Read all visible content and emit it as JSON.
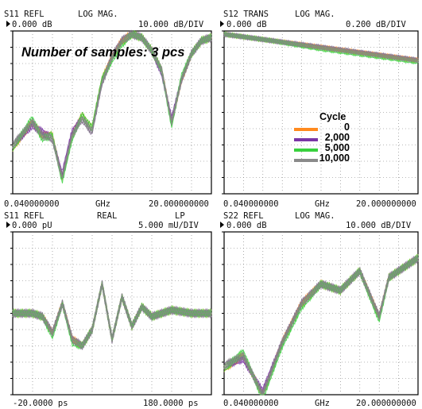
{
  "note": "Number of samples: 3 pcs",
  "legend": {
    "title": "Cycle",
    "entries": [
      {
        "label": "0",
        "color": "#ff8a1e"
      },
      {
        "label": "2,000",
        "color": "#7a35a6"
      },
      {
        "label": "5,000",
        "color": "#39d13e"
      },
      {
        "label": "10,000",
        "color": "#8a8a8a"
      }
    ]
  },
  "panels": [
    {
      "title_left": "S11 REFL",
      "title_mid": "LOG MAG.",
      "title_lp": "",
      "ref": "0.000 dB",
      "scale": "10.000 dB/DIV",
      "x_start": "0.040000000",
      "x_unit": "GHz",
      "x_stop": "20.000000000",
      "trace_shape": "s11"
    },
    {
      "title_left": "S12 TRANS",
      "title_mid": "LOG MAG.",
      "title_lp": "",
      "ref": "0.000 dB",
      "scale": "0.200 dB/DIV",
      "x_start": "0.040000000",
      "x_unit": "GHz",
      "x_stop": "20.000000000",
      "trace_shape": "s12"
    },
    {
      "title_left": "S11 REFL",
      "title_mid": "REAL",
      "title_lp": "LP",
      "ref": "0.000 pU",
      "scale": "5.000 mU/DIV",
      "x_start": "-20.0000 ps",
      "x_unit": "",
      "x_stop": "180.0000 ps",
      "trace_shape": "tdr"
    },
    {
      "title_left": "S22 REFL",
      "title_mid": "LOG MAG.",
      "title_lp": "",
      "ref": "0.000 dB",
      "scale": "10.000 dB/DIV",
      "x_start": "0.040000000",
      "x_unit": "GHz",
      "x_stop": "20.000000000",
      "trace_shape": "s22"
    }
  ],
  "chart_data": [
    {
      "type": "line",
      "title": "S11 REFL LOG MAG.",
      "xlabel": "GHz",
      "xlim": [
        0.04,
        20.0
      ],
      "scale_per_div": "10.000 dB/DIV",
      "series": [
        {
          "name": "0",
          "x": [
            0.04,
            2,
            3,
            4,
            5,
            6,
            7,
            8,
            9,
            10,
            11,
            12,
            13,
            14,
            15,
            16,
            17,
            18,
            19,
            20
          ],
          "y": [
            -36,
            -28,
            -32,
            -32,
            -45,
            -32,
            -26,
            -30,
            -15,
            -8,
            -3,
            -1,
            -2,
            -6,
            -12,
            -28,
            -15,
            -7,
            -3,
            -2
          ]
        },
        {
          "name": "2,000",
          "x": [
            0.04,
            2,
            3,
            4,
            5,
            6,
            7,
            8,
            9,
            10,
            11,
            12,
            13,
            14,
            15,
            16,
            17,
            18,
            19,
            20
          ],
          "y": [
            -35,
            -29,
            -31,
            -33,
            -44,
            -31,
            -27,
            -31,
            -16,
            -8,
            -3,
            -1,
            -2,
            -6,
            -13,
            -27,
            -15,
            -7,
            -3,
            -2
          ]
        },
        {
          "name": "5,000",
          "x": [
            0.04,
            2,
            3,
            4,
            5,
            6,
            7,
            8,
            9,
            10,
            11,
            12,
            13,
            14,
            15,
            16,
            17,
            18,
            19,
            20
          ],
          "y": [
            -36,
            -27,
            -33,
            -32,
            -46,
            -33,
            -26,
            -30,
            -15,
            -9,
            -4,
            -1,
            -2,
            -6,
            -12,
            -29,
            -14,
            -7,
            -3,
            -2
          ]
        },
        {
          "name": "10,000",
          "x": [
            0.04,
            2,
            3,
            4,
            5,
            6,
            7,
            8,
            9,
            10,
            11,
            12,
            13,
            14,
            15,
            16,
            17,
            18,
            19,
            20
          ],
          "y": [
            -35,
            -28,
            -32,
            -33,
            -45,
            -32,
            -27,
            -31,
            -16,
            -8,
            -3,
            -1,
            -2,
            -6,
            -12,
            -28,
            -15,
            -7,
            -3,
            -2
          ]
        }
      ]
    },
    {
      "type": "line",
      "title": "S12 TRANS LOG MAG.",
      "xlabel": "GHz",
      "xlim": [
        0.04,
        20.0
      ],
      "scale_per_div": "0.200 dB/DIV",
      "series": [
        {
          "name": "0",
          "x": [
            0.04,
            5,
            10,
            15,
            20
          ],
          "y": [
            -0.02,
            -0.06,
            -0.1,
            -0.14,
            -0.18
          ]
        },
        {
          "name": "2,000",
          "x": [
            0.04,
            5,
            10,
            15,
            20
          ],
          "y": [
            -0.02,
            -0.06,
            -0.1,
            -0.14,
            -0.18
          ]
        },
        {
          "name": "5,000",
          "x": [
            0.04,
            5,
            10,
            15,
            20
          ],
          "y": [
            -0.02,
            -0.06,
            -0.11,
            -0.15,
            -0.19
          ]
        },
        {
          "name": "10,000",
          "x": [
            0.04,
            5,
            10,
            15,
            20
          ],
          "y": [
            -0.02,
            -0.06,
            -0.1,
            -0.14,
            -0.18
          ]
        }
      ]
    },
    {
      "type": "line",
      "title": "S11 REFL REAL LP",
      "xlabel": "ps",
      "xlim": [
        -20.0,
        180.0
      ],
      "scale_per_div": "5.000 mU/DIV",
      "series": [
        {
          "name": "0",
          "x": [
            -20,
            0,
            10,
            20,
            30,
            40,
            50,
            60,
            70,
            80,
            90,
            100,
            110,
            120,
            140,
            160,
            180
          ],
          "y": [
            0,
            0,
            -1,
            -6,
            3,
            -8,
            -10,
            -5,
            9,
            -8,
            5,
            -4,
            2,
            -1,
            1,
            0,
            0
          ]
        },
        {
          "name": "2,000",
          "x": [
            -20,
            0,
            10,
            20,
            30,
            40,
            50,
            60,
            70,
            80,
            90,
            100,
            110,
            120,
            140,
            160,
            180
          ],
          "y": [
            0,
            0,
            -1,
            -6,
            3,
            -8,
            -10,
            -5,
            9,
            -8,
            5,
            -4,
            2,
            -1,
            1,
            0,
            0
          ]
        },
        {
          "name": "5,000",
          "x": [
            -20,
            0,
            10,
            20,
            30,
            40,
            50,
            60,
            70,
            80,
            90,
            100,
            110,
            120,
            140,
            160,
            180
          ],
          "y": [
            0,
            0,
            -1,
            -7,
            3,
            -9,
            -10,
            -5,
            9,
            -8,
            5,
            -4,
            2,
            -1,
            1,
            0,
            0
          ]
        },
        {
          "name": "10,000",
          "x": [
            -20,
            0,
            10,
            20,
            30,
            40,
            50,
            60,
            70,
            80,
            90,
            100,
            110,
            120,
            140,
            160,
            180
          ],
          "y": [
            0,
            0,
            -1,
            -6,
            3,
            -8,
            -10,
            -5,
            9,
            -8,
            5,
            -4,
            2,
            -1,
            1,
            0,
            0
          ]
        }
      ]
    },
    {
      "type": "line",
      "title": "S22 REFL LOG MAG.",
      "xlabel": "GHz",
      "xlim": [
        0.04,
        20.0
      ],
      "scale_per_div": "10.000 dB/DIV",
      "series": [
        {
          "name": "0",
          "x": [
            0.04,
            2,
            4,
            6,
            8,
            10,
            12,
            14,
            16,
            17,
            18,
            20
          ],
          "y": [
            -42,
            -38,
            -50,
            -34,
            -22,
            -16,
            -18,
            -12,
            -26,
            -14,
            -12,
            -8
          ]
        },
        {
          "name": "2,000",
          "x": [
            0.04,
            2,
            4,
            6,
            8,
            10,
            12,
            14,
            16,
            17,
            18,
            20
          ],
          "y": [
            -41,
            -39,
            -49,
            -34,
            -22,
            -16,
            -18,
            -12,
            -26,
            -14,
            -12,
            -8
          ]
        },
        {
          "name": "5,000",
          "x": [
            0.04,
            2,
            4,
            6,
            8,
            10,
            12,
            14,
            16,
            17,
            18,
            20
          ],
          "y": [
            -42,
            -37,
            -51,
            -35,
            -23,
            -16,
            -18,
            -12,
            -27,
            -14,
            -12,
            -8
          ]
        },
        {
          "name": "10,000",
          "x": [
            0.04,
            2,
            4,
            6,
            8,
            10,
            12,
            14,
            16,
            17,
            18,
            20
          ],
          "y": [
            -41,
            -38,
            -50,
            -34,
            -22,
            -16,
            -18,
            -12,
            -26,
            -14,
            -12,
            -8
          ]
        }
      ]
    }
  ]
}
